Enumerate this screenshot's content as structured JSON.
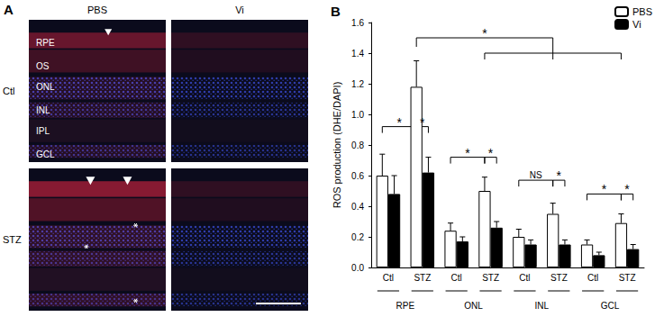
{
  "panel_a": {
    "label": "A",
    "columns": [
      "PBS",
      "Vi"
    ],
    "rows": [
      "Ctl",
      "STZ"
    ],
    "layers": [
      "RPE",
      "OS",
      "ONL",
      "INL",
      "IPL",
      "GCL"
    ]
  },
  "chart_data": {
    "type": "bar",
    "title": "B",
    "y_label": "ROS production (DHE/DAPI)",
    "categories": [
      "Ctl",
      "STZ",
      "Ctl",
      "STZ",
      "Ctl",
      "STZ",
      "Ctl",
      "STZ"
    ],
    "groups": [
      "RPE",
      "ONL",
      "INL",
      "GCL"
    ],
    "series": [
      {
        "name": "PBS",
        "color": "#ffffff",
        "values": [
          0.6,
          1.18,
          0.24,
          0.5,
          0.2,
          0.35,
          0.15,
          0.29
        ],
        "errors": [
          0.14,
          0.17,
          0.05,
          0.09,
          0.05,
          0.07,
          0.03,
          0.06
        ]
      },
      {
        "name": "Vi",
        "color": "#000000",
        "values": [
          0.48,
          0.62,
          0.17,
          0.26,
          0.15,
          0.15,
          0.08,
          0.12
        ],
        "errors": [
          0.12,
          0.1,
          0.03,
          0.04,
          0.03,
          0.03,
          0.02,
          0.03
        ]
      }
    ],
    "ylim": [
      0,
      1.6
    ],
    "yticks": [
      {
        "value": 0,
        "label": "0.0"
      },
      0.2,
      0.4,
      0.6,
      0.8,
      {
        "value": 1,
        "label": "1.0"
      },
      1.2,
      1.4,
      1.6
    ],
    "grid": false,
    "legend": "top-right",
    "annotations": [
      {
        "text": "*",
        "from": [
          0,
          "PBS"
        ],
        "to": [
          1,
          "PBS"
        ],
        "y": 0.92
      },
      {
        "text": "*",
        "from": [
          1,
          "PBS"
        ],
        "to": [
          1,
          "Vi"
        ],
        "y": 0.92
      },
      {
        "text": "*",
        "from": [
          2,
          "PBS"
        ],
        "to": [
          3,
          "PBS"
        ],
        "y": 0.72
      },
      {
        "text": "*",
        "from": [
          3,
          "PBS"
        ],
        "to": [
          3,
          "Vi"
        ],
        "y": 0.72
      },
      {
        "text": "NS",
        "from": [
          4,
          "PBS"
        ],
        "to": [
          5,
          "PBS"
        ],
        "y": 0.57
      },
      {
        "text": "*",
        "from": [
          5,
          "PBS"
        ],
        "to": [
          5,
          "Vi"
        ],
        "y": 0.57
      },
      {
        "text": "*",
        "from": [
          6,
          "PBS"
        ],
        "to": [
          7,
          "PBS"
        ],
        "y": 0.48
      },
      {
        "text": "*",
        "from": [
          7,
          "PBS"
        ],
        "to": [
          7,
          "Vi"
        ],
        "y": 0.48
      },
      {
        "text": "*",
        "from": [
          1,
          "PBS"
        ],
        "to": [
          [
            3,
            "PBS"
          ],
          [
            5,
            "PBS"
          ],
          [
            7,
            "PBS"
          ]
        ],
        "y": 1.5,
        "y2": 1.4
      }
    ]
  }
}
